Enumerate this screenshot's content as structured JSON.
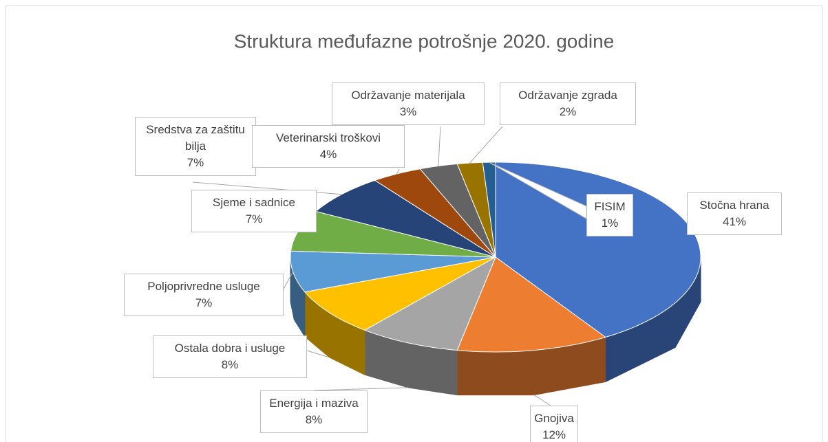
{
  "chart_data": {
    "type": "pie3d",
    "title": "Struktura međufazne potrošnje 2020. godine",
    "categories": [
      "Stočna hrana",
      "Gnojiva",
      "Energija i maziva",
      "Ostala dobra i usluge",
      "Poljoprivredne usluge",
      "Sjeme i sadnice",
      "Sredstva za zaštitu bilja",
      "Veterinarski troškovi",
      "Održavanje materijala",
      "Održavanje zgrada",
      "FISIM"
    ],
    "values": [
      41,
      12,
      8,
      8,
      7,
      7,
      7,
      4,
      3,
      2,
      1
    ],
    "value_labels": [
      "41%",
      "12%",
      "8%",
      "8%",
      "7%",
      "7%",
      "7%",
      "4%",
      "3%",
      "2%",
      "1%"
    ],
    "colors": [
      "#4472c4",
      "#ed7d31",
      "#a5a5a5",
      "#ffc000",
      "#5b9bd5",
      "#70ad47",
      "#264478",
      "#9e480e",
      "#636363",
      "#997300",
      "#255e91"
    ]
  }
}
